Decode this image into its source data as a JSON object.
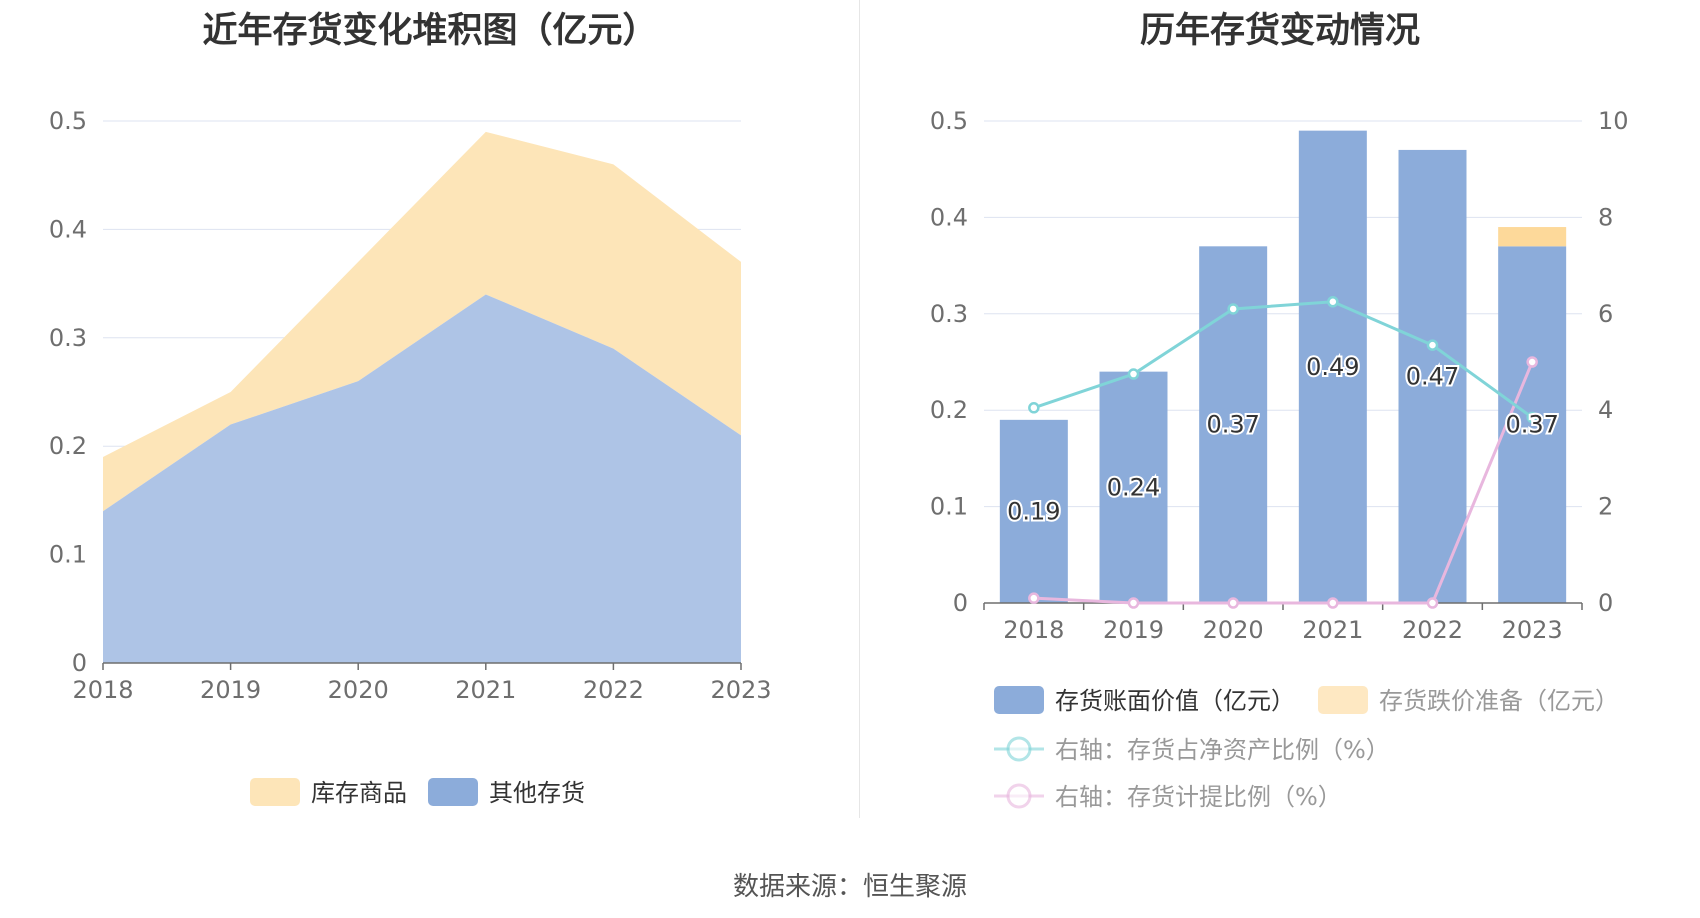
{
  "left_chart": {
    "title": "近年存货变化堆积图（亿元）"
  },
  "right_chart": {
    "title": "历年存货变动情况"
  },
  "source": "数据来源：恒生聚源",
  "colors": {
    "inventory_goods": "#fde5b8",
    "other_inventory": "#aec4e6",
    "book_value": "#8cacda",
    "impairment": "#fdd99a",
    "ratio_net_assets": "#80d4d8",
    "provision_ratio": "#e8b7de",
    "grid": "#dde3f0",
    "axis": "#6e6e6e"
  },
  "chart_data": [
    {
      "type": "area",
      "stacked": true,
      "title": "近年存货变化堆积图（亿元）",
      "categories": [
        "2018",
        "2019",
        "2020",
        "2021",
        "2022",
        "2023"
      ],
      "ylim": [
        0,
        0.5
      ],
      "yticks": [
        "0",
        "0.1",
        "0.2",
        "0.3",
        "0.4",
        "0.5"
      ],
      "grid": true,
      "legend_position": "bottom",
      "series": [
        {
          "name": "其他存货",
          "values": [
            0.14,
            0.22,
            0.26,
            0.34,
            0.29,
            0.21
          ]
        },
        {
          "name": "库存商品",
          "values": [
            0.05,
            0.03,
            0.11,
            0.15,
            0.17,
            0.16
          ]
        }
      ],
      "legend": [
        "库存商品",
        "其他存货"
      ]
    },
    {
      "type": "bar",
      "title": "历年存货变动情况",
      "categories": [
        "2018",
        "2019",
        "2020",
        "2021",
        "2022",
        "2023"
      ],
      "ylim": [
        0,
        0.5
      ],
      "yticks": [
        "0",
        "0.1",
        "0.2",
        "0.3",
        "0.4",
        "0.5"
      ],
      "y2lim": [
        0,
        10
      ],
      "y2ticks": [
        "0",
        "2",
        "4",
        "6",
        "8",
        "10"
      ],
      "grid": true,
      "legend_position": "bottom",
      "series": [
        {
          "name": "存货账面价值（亿元）",
          "type": "bar",
          "stack": "a",
          "values": [
            0.19,
            0.24,
            0.37,
            0.49,
            0.47,
            0.37
          ],
          "labels": [
            "0.19",
            "0.24",
            "0.37",
            "0.49",
            "0.47",
            "0.37"
          ]
        },
        {
          "name": "存货跌价准备（亿元）",
          "type": "bar",
          "stack": "a",
          "values": [
            0,
            0,
            0,
            0,
            0,
            0.02
          ]
        },
        {
          "name": "右轴：存货占净资产比例（%）",
          "type": "line",
          "axis": "right",
          "values": [
            4.05,
            4.75,
            6.1,
            6.25,
            5.35,
            3.85
          ]
        },
        {
          "name": "右轴：存货计提比例（%）",
          "type": "line",
          "axis": "right",
          "values": [
            0.1,
            0,
            0,
            0,
            0,
            5.0
          ]
        }
      ]
    }
  ]
}
